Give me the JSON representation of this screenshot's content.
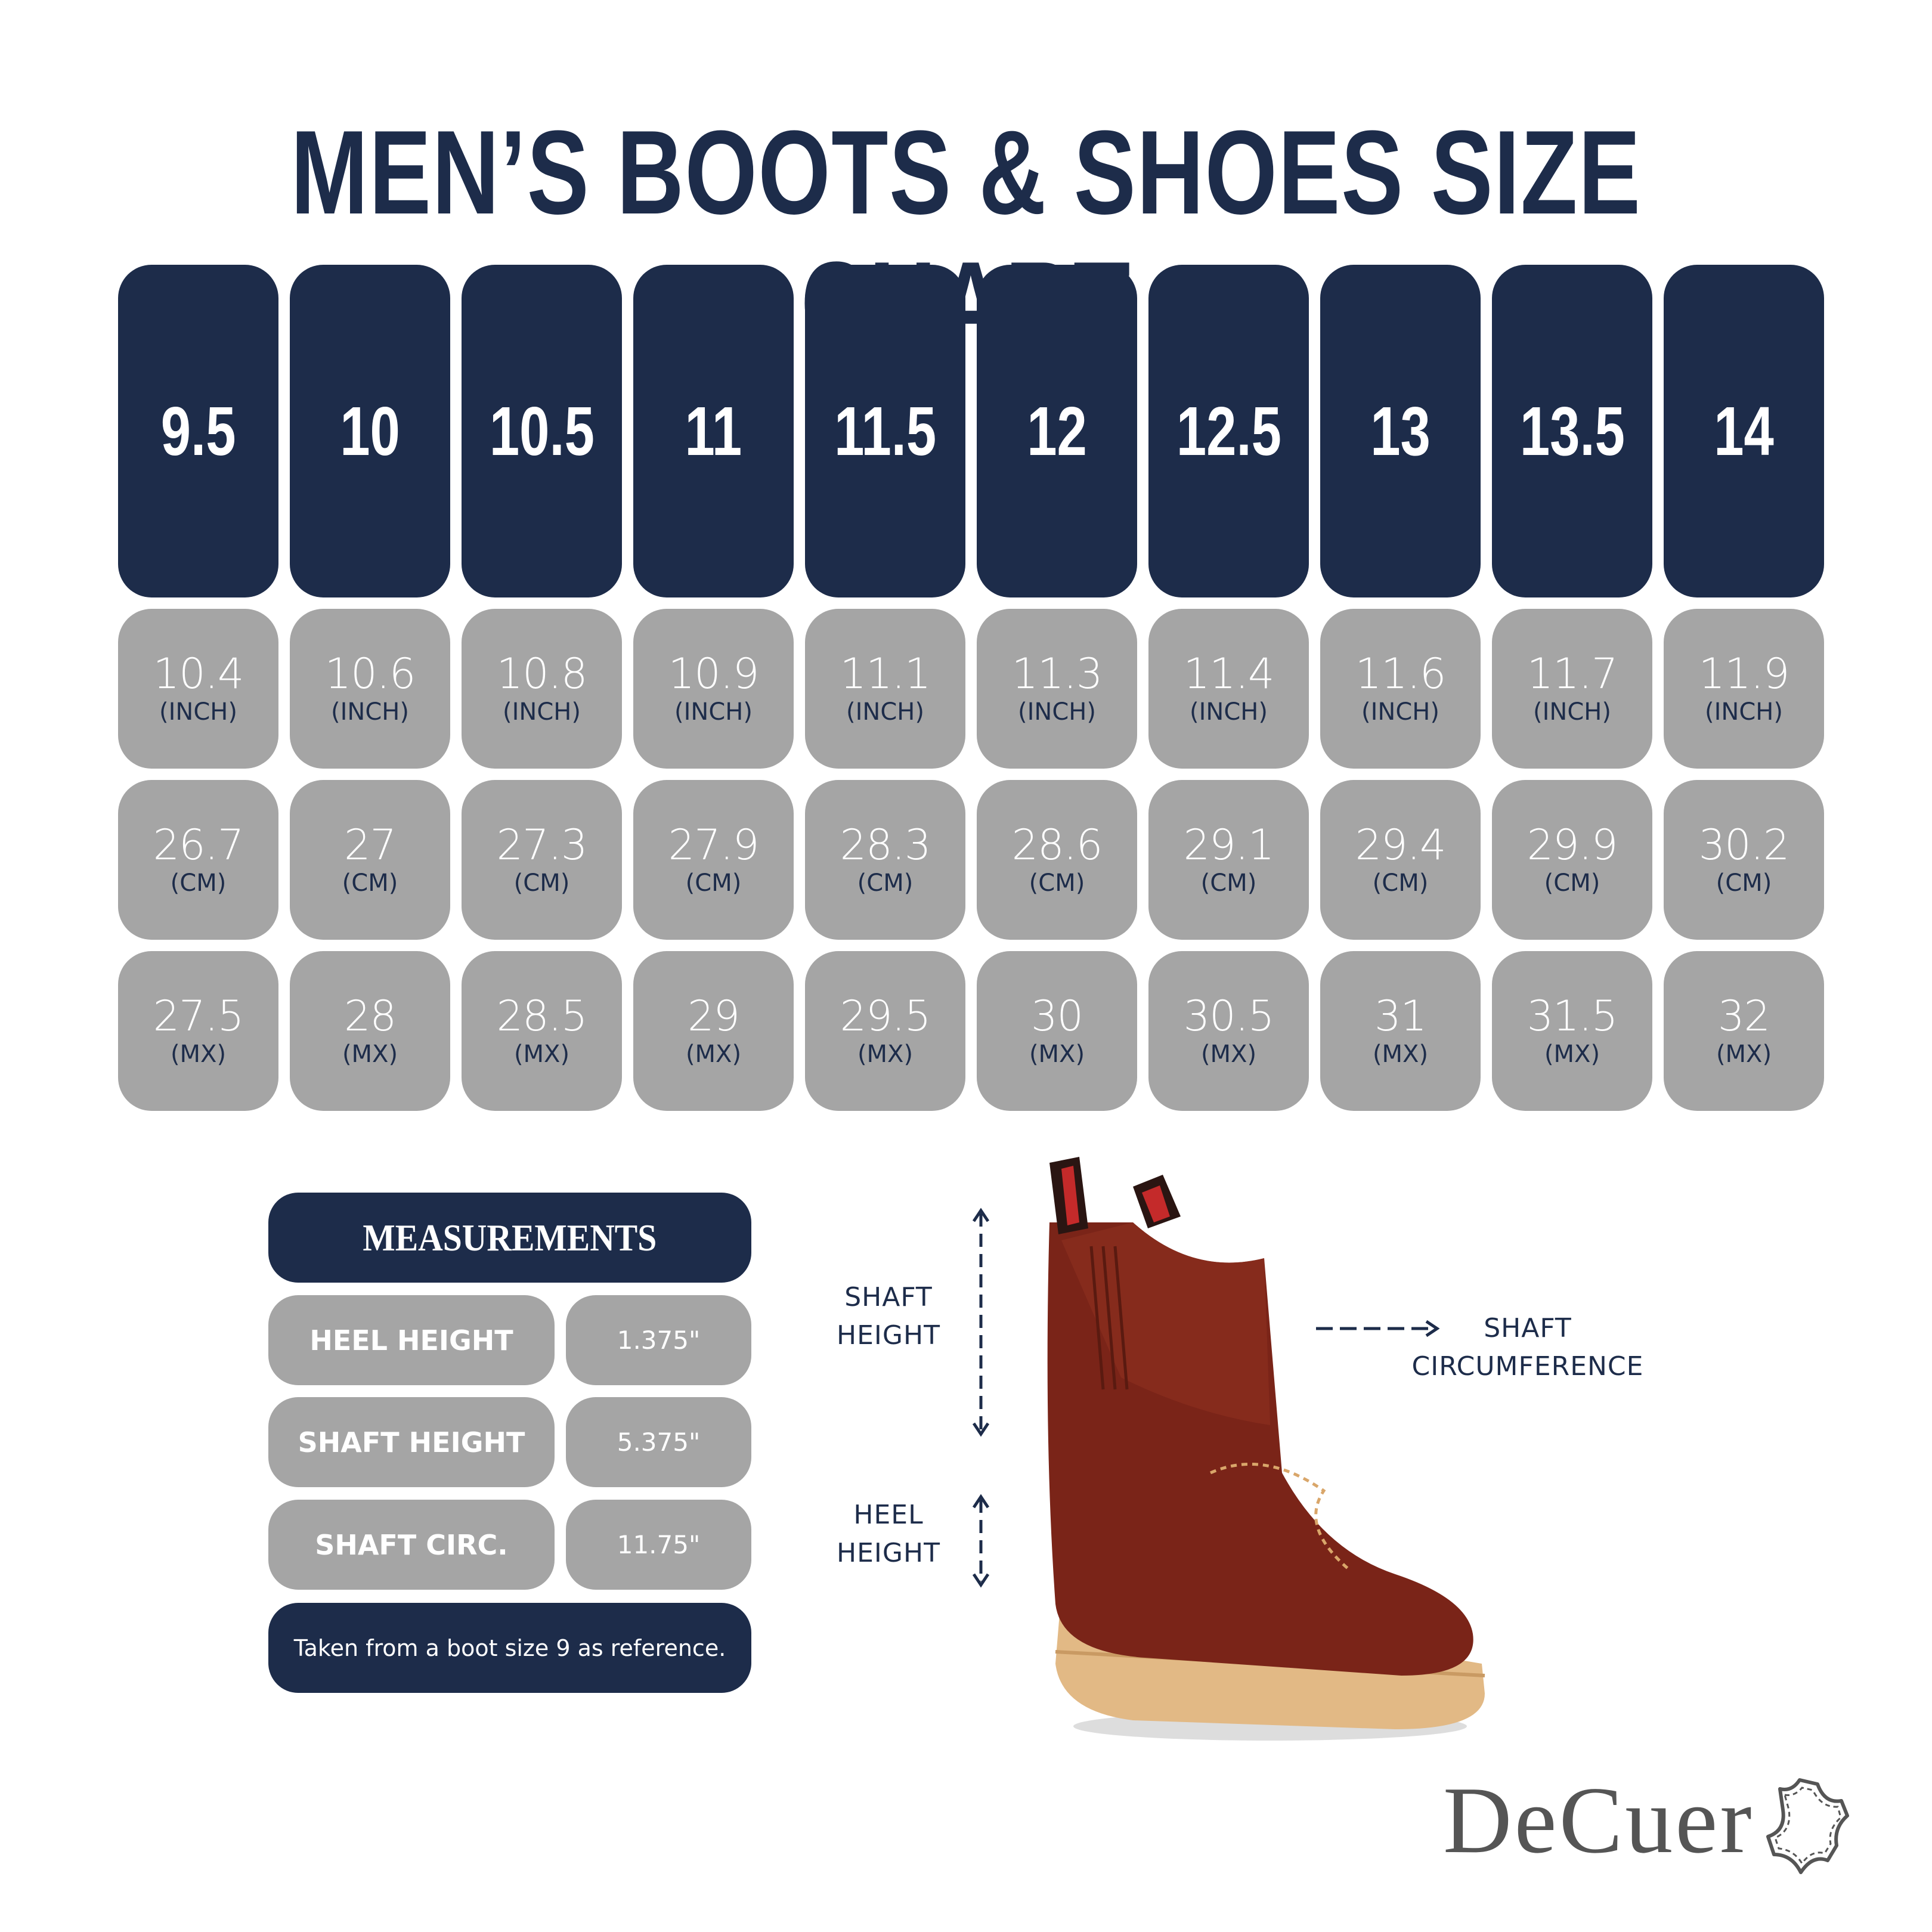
{
  "title": "MEN’S BOOTS & SHOES SIZE CHART",
  "sizes": [
    "9.5",
    "10",
    "10.5",
    "11",
    "11.5",
    "12",
    "12.5",
    "13",
    "13.5",
    "14"
  ],
  "rows": [
    {
      "unit": "(INCH)",
      "values": [
        "10.4",
        "10.6",
        "10.8",
        "10.9",
        "11.1",
        "11.3",
        "11.4",
        "11.6",
        "11.7",
        "11.9"
      ]
    },
    {
      "unit": "(CM)",
      "values": [
        "26.7",
        "27",
        "27.3",
        "27.9",
        "28.3",
        "28.6",
        "29.1",
        "29.4",
        "29.9",
        "30.2"
      ]
    },
    {
      "unit": "(MX)",
      "values": [
        "27.5",
        "28",
        "28.5",
        "29",
        "29.5",
        "30",
        "30.5",
        "31",
        "31.5",
        "32"
      ]
    }
  ],
  "measurements": {
    "header": "MEASUREMENTS",
    "items": [
      {
        "label": "HEEL HEIGHT",
        "value": "1.375\""
      },
      {
        "label": "SHAFT HEIGHT",
        "value": "5.375\""
      },
      {
        "label": "SHAFT CIRC.",
        "value": "11.75\""
      }
    ],
    "note": "Taken from a boot size 9 as reference."
  },
  "diagram": {
    "shaft_height_label": [
      "SHAFT",
      "HEIGHT"
    ],
    "heel_height_label": [
      "HEEL",
      "HEIGHT"
    ],
    "shaft_circ_label": [
      "SHAFT",
      "CIRCUMFERENCE"
    ]
  },
  "brand": {
    "name": "DeCuero",
    "text": "DeCuer",
    "icon": "leather-hide-icon"
  },
  "colors": {
    "navy": "#1d2c4a",
    "gray": "#a5a5a5",
    "logo": "#555555",
    "boot": "#7a2418",
    "sole": "#e2b985"
  }
}
